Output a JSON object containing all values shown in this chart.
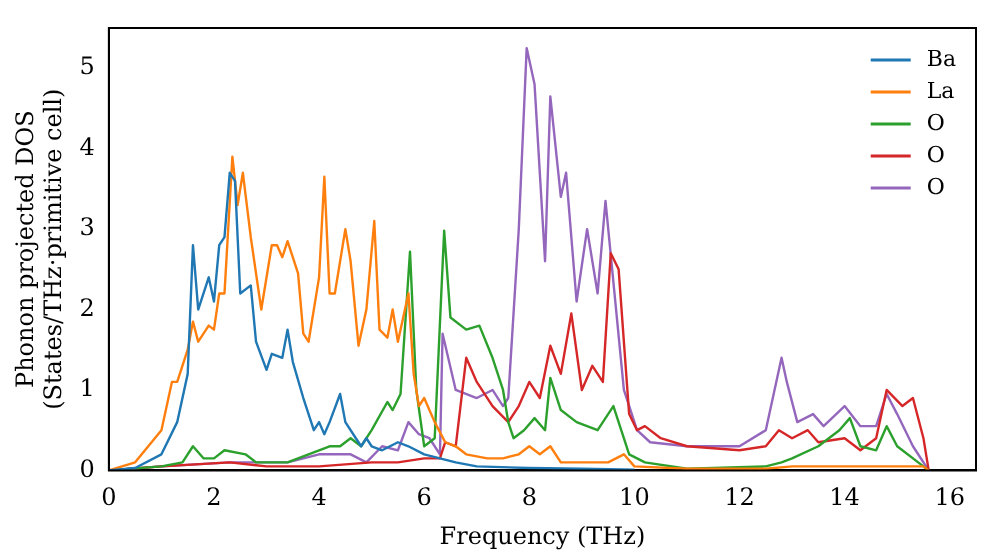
{
  "chart_data": {
    "type": "line",
    "xlabel": "Frequency (THz)",
    "ylabel": "Phonon projected DOS\n(States/THz·primitive cell)",
    "xlim": [
      0,
      16.5
    ],
    "xticks": [
      0,
      2,
      4,
      6,
      8,
      10,
      12,
      14,
      16
    ],
    "ylim": [
      0,
      5.5
    ],
    "yticks": [
      0,
      1,
      2,
      3,
      4,
      5
    ],
    "grid": false,
    "legend": "top right",
    "marker": "none",
    "line_style": "solid",
    "series": [
      {
        "name": "Ba",
        "color": "#1f77b4",
        "x": [
          0,
          0.5,
          1,
          1.3,
          1.5,
          1.6,
          1.7,
          1.9,
          2.0,
          2.1,
          2.2,
          2.3,
          2.4,
          2.5,
          2.7,
          2.8,
          3.0,
          3.1,
          3.3,
          3.4,
          3.5,
          3.7,
          3.9,
          4.0,
          4.1,
          4.2,
          4.4,
          4.5,
          4.7,
          4.8,
          4.9,
          5.0,
          5.2,
          5.5,
          5.7,
          6.0,
          6.3,
          6.6,
          7,
          8,
          9,
          10
        ],
        "values": [
          0,
          0.03,
          0.2,
          0.6,
          1.2,
          2.8,
          2.0,
          2.4,
          2.1,
          2.8,
          2.9,
          3.7,
          3.6,
          2.2,
          2.3,
          1.6,
          1.25,
          1.45,
          1.4,
          1.75,
          1.35,
          0.9,
          0.5,
          0.6,
          0.45,
          0.6,
          0.95,
          0.6,
          0.4,
          0.3,
          0.4,
          0.3,
          0.25,
          0.35,
          0.3,
          0.2,
          0.15,
          0.1,
          0.05,
          0.03,
          0.02,
          0.01
        ]
      },
      {
        "name": "La",
        "color": "#ff7f0e",
        "x": [
          0,
          0.5,
          1,
          1.2,
          1.3,
          1.5,
          1.6,
          1.7,
          1.9,
          2.0,
          2.1,
          2.2,
          2.35,
          2.45,
          2.55,
          2.7,
          2.9,
          3.1,
          3.2,
          3.3,
          3.4,
          3.6,
          3.7,
          3.8,
          4.0,
          4.1,
          4.2,
          4.3,
          4.5,
          4.6,
          4.75,
          4.9,
          5.05,
          5.15,
          5.3,
          5.4,
          5.5,
          5.7,
          5.8,
          5.9,
          6.0,
          6.2,
          6.4,
          6.6,
          6.8,
          7.2,
          7.5,
          7.8,
          8.0,
          8.2,
          8.4,
          8.6,
          9,
          9.5,
          9.8,
          10,
          11,
          12.5,
          13,
          14,
          15.5,
          15.6
        ],
        "values": [
          0,
          0.1,
          0.5,
          1.1,
          1.1,
          1.5,
          1.85,
          1.6,
          1.8,
          1.75,
          2.2,
          2.2,
          3.9,
          3.3,
          3.7,
          2.9,
          2.0,
          2.8,
          2.8,
          2.65,
          2.85,
          2.45,
          1.7,
          1.6,
          2.4,
          3.65,
          2.2,
          2.2,
          3.0,
          2.6,
          1.55,
          2.0,
          3.1,
          1.75,
          1.65,
          2.0,
          1.6,
          2.2,
          1.2,
          0.8,
          0.9,
          0.6,
          0.35,
          0.3,
          0.2,
          0.15,
          0.15,
          0.2,
          0.3,
          0.2,
          0.3,
          0.1,
          0.1,
          0.1,
          0.2,
          0.05,
          0.02,
          0.02,
          0.05,
          0.05,
          0.05,
          0
        ]
      },
      {
        "name": "O",
        "color": "#2ca02c",
        "x": [
          0,
          1,
          1.4,
          1.6,
          1.8,
          2.0,
          2.2,
          2.6,
          2.8,
          3.4,
          3.8,
          4.2,
          4.4,
          4.6,
          4.8,
          5.0,
          5.3,
          5.4,
          5.55,
          5.73,
          5.85,
          6.0,
          6.2,
          6.38,
          6.5,
          6.8,
          7.05,
          7.3,
          7.5,
          7.6,
          7.7,
          7.9,
          8.1,
          8.3,
          8.4,
          8.6,
          8.9,
          9.3,
          9.6,
          9.9,
          10.2,
          11,
          12.5,
          12.8,
          13,
          13.5,
          13.9,
          14.1,
          14.3,
          14.6,
          14.8,
          15,
          15.4,
          15.6
        ],
        "values": [
          0,
          0.05,
          0.1,
          0.3,
          0.15,
          0.15,
          0.25,
          0.2,
          0.1,
          0.1,
          0.2,
          0.3,
          0.3,
          0.4,
          0.3,
          0.5,
          0.85,
          0.75,
          0.95,
          2.72,
          1.0,
          0.3,
          0.4,
          2.98,
          1.9,
          1.75,
          1.8,
          1.4,
          1.0,
          0.6,
          0.4,
          0.5,
          0.65,
          0.5,
          1.15,
          0.75,
          0.6,
          0.5,
          0.8,
          0.2,
          0.1,
          0.02,
          0.05,
          0.1,
          0.15,
          0.3,
          0.5,
          0.65,
          0.3,
          0.25,
          0.55,
          0.3,
          0.1,
          0
        ]
      },
      {
        "name": "O",
        "color": "#d62728",
        "x": [
          0,
          1,
          2.3,
          3,
          4,
          5,
          5.5,
          6,
          6.3,
          6.4,
          6.6,
          6.8,
          7.0,
          7.3,
          7.6,
          7.8,
          8.0,
          8.2,
          8.4,
          8.6,
          8.8,
          9.0,
          9.2,
          9.4,
          9.55,
          9.7,
          9.9,
          10.05,
          10.2,
          10.5,
          11,
          12,
          12.5,
          12.75,
          13.0,
          13.3,
          13.5,
          14,
          14.3,
          14.6,
          14.8,
          15.1,
          15.3,
          15.5,
          15.6
        ],
        "values": [
          0,
          0.05,
          0.1,
          0.05,
          0.05,
          0.1,
          0.1,
          0.15,
          0.15,
          0.35,
          0.3,
          1.4,
          1.1,
          0.8,
          0.6,
          0.8,
          1.1,
          0.9,
          1.55,
          1.2,
          1.95,
          1.0,
          1.3,
          1.1,
          2.7,
          2.5,
          0.7,
          0.5,
          0.55,
          0.4,
          0.3,
          0.25,
          0.3,
          0.5,
          0.4,
          0.5,
          0.35,
          0.4,
          0.25,
          0.4,
          1.0,
          0.8,
          0.9,
          0.4,
          0
        ]
      },
      {
        "name": "O",
        "color": "#9467bd",
        "x": [
          0,
          1,
          2.3,
          3.4,
          4.0,
          4.6,
          4.9,
          5.2,
          5.5,
          5.7,
          5.9,
          6.1,
          6.3,
          6.35,
          6.6,
          7.0,
          7.3,
          7.5,
          7.6,
          7.8,
          7.95,
          8.1,
          8.3,
          8.4,
          8.6,
          8.7,
          8.9,
          9.1,
          9.3,
          9.45,
          9.8,
          10.05,
          10.3,
          11,
          12,
          12.5,
          12.8,
          12.9,
          13.1,
          13.4,
          13.6,
          14.0,
          14.3,
          14.6,
          14.8,
          15,
          15.3,
          15.6
        ],
        "values": [
          0,
          0.05,
          0.1,
          0.1,
          0.2,
          0.2,
          0.1,
          0.3,
          0.25,
          0.6,
          0.45,
          0.4,
          0.2,
          1.7,
          1.0,
          0.9,
          1.0,
          0.8,
          0.9,
          3.0,
          5.25,
          4.8,
          2.6,
          4.65,
          3.4,
          3.7,
          2.1,
          3.0,
          2.2,
          3.35,
          1.0,
          0.5,
          0.35,
          0.3,
          0.3,
          0.5,
          1.4,
          1.1,
          0.6,
          0.7,
          0.55,
          0.8,
          0.55,
          0.55,
          0.95,
          0.7,
          0.3,
          0
        ]
      }
    ]
  }
}
